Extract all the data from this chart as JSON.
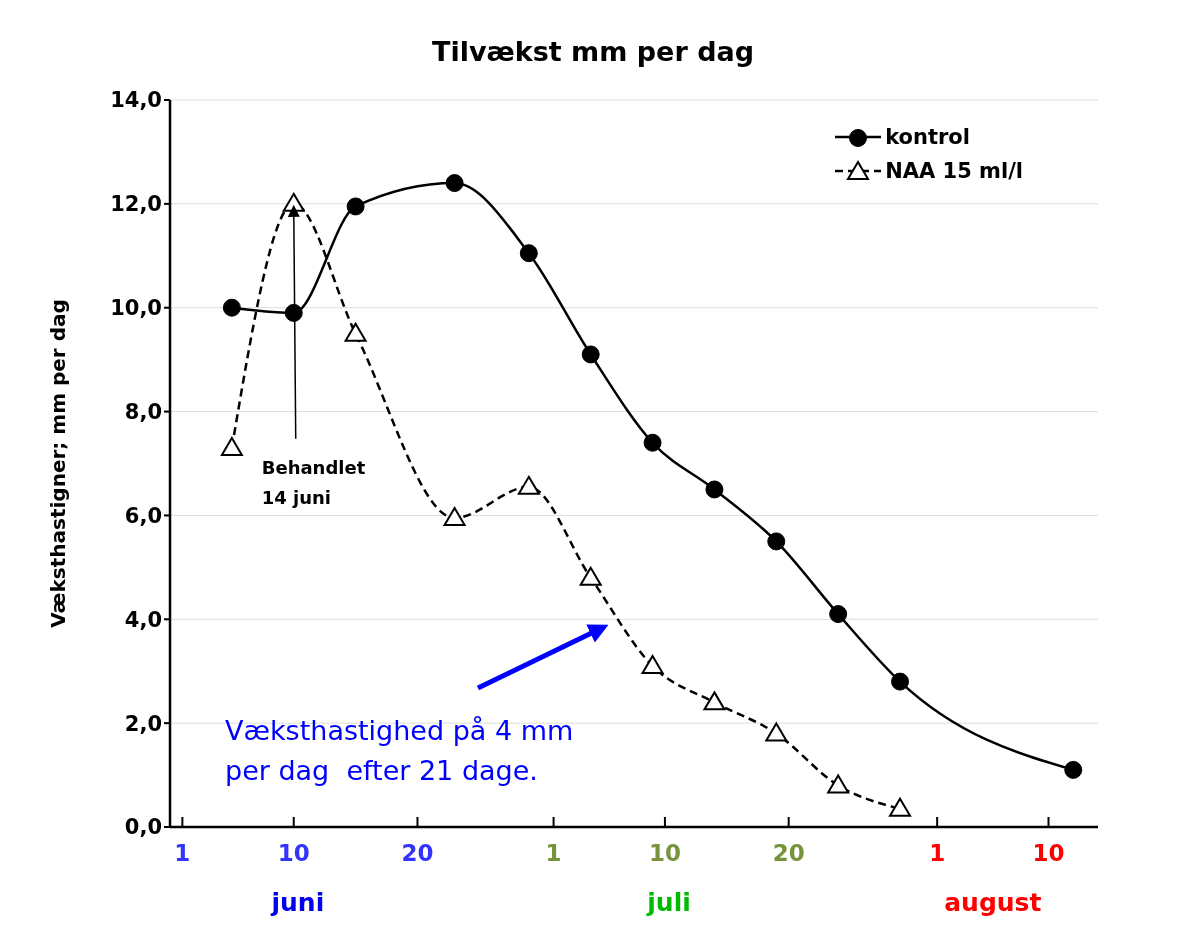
{
  "chart_data": {
    "type": "line",
    "title": "Tilvækst mm per dag",
    "ylabel": "Væksthastigner; mm per dag",
    "xlim": [
      "--05-31",
      "--08-14"
    ],
    "xticks": [
      {
        "value": "--06-01",
        "label": "1"
      },
      {
        "value": "--06-10",
        "label": "10"
      },
      {
        "value": "--06-20",
        "label": "20"
      },
      {
        "value": "--07-01",
        "label": "1"
      },
      {
        "value": "--07-10",
        "label": "10"
      },
      {
        "value": "--07-20",
        "label": "20"
      },
      {
        "value": "--08-01",
        "label": "1"
      },
      {
        "value": "--08-10",
        "label": "10"
      }
    ],
    "ylim": [
      0,
      14
    ],
    "yticks": [
      {
        "value": 0,
        "label": "0,0"
      },
      {
        "value": 2,
        "label": "2,0"
      },
      {
        "value": 4,
        "label": "4,0"
      },
      {
        "value": 6,
        "label": "6,0"
      },
      {
        "value": 8,
        "label": "8,0"
      },
      {
        "value": 10,
        "label": "10,0"
      },
      {
        "value": 12,
        "label": "12,0"
      },
      {
        "value": 14,
        "label": "14,0"
      }
    ],
    "grid": "y",
    "legend": "top right",
    "series": [
      {
        "name": "kontrol",
        "color": "#000000",
        "marker": "circle",
        "line_style": "solid",
        "x": [
          "--06-05",
          "--06-10",
          "--06-15",
          "--06-23",
          "--06-29",
          "--07-04",
          "--07-09",
          "--07-14",
          "--07-19",
          "--07-24",
          "--07-29",
          "--08-12"
        ],
        "values": [
          10.0,
          9.9,
          11.95,
          12.4,
          11.05,
          9.1,
          7.4,
          6.5,
          5.5,
          4.1,
          2.8,
          1.1
        ]
      },
      {
        "name": "NAA 15 ml/l",
        "color": "#000000",
        "marker": "triangle",
        "line_style": "dashed",
        "x": [
          "--06-05",
          "--06-10",
          "--06-15",
          "--06-23",
          "--06-29",
          "--07-04",
          "--07-09",
          "--07-14",
          "--07-19",
          "--07-24",
          "--07-29"
        ],
        "values": [
          7.3,
          12.0,
          9.5,
          5.95,
          6.55,
          4.8,
          3.1,
          2.4,
          1.8,
          0.8,
          0.35
        ]
      }
    ],
    "annotations": [
      "juni",
      "juli",
      "august",
      {
        "text": "Behandlet\n14 juni",
        "x": "--06-10",
        "y": 12.0
      },
      "Væksthastighed på 4 mm\nper dag  efter 21 dage."
    ]
  }
}
